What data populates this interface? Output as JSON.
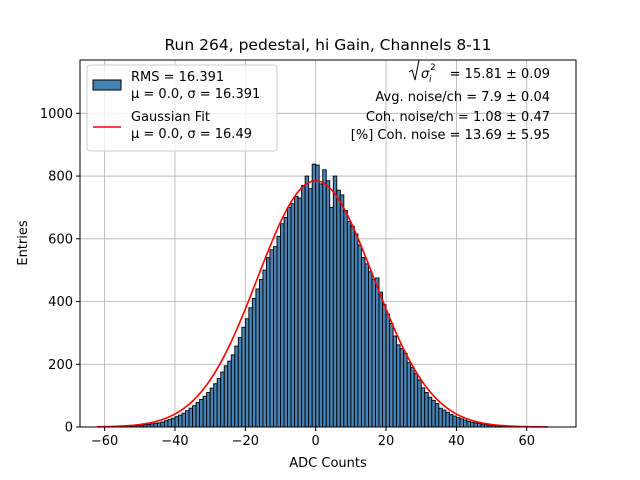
{
  "chart_data": {
    "type": "bar",
    "title": "Run 264, pedestal, hi Gain, Channels 8-11",
    "xlabel": "ADC Counts",
    "ylabel": "Entries",
    "xlim": [
      -67,
      74
    ],
    "ylim": [
      0,
      1170
    ],
    "xticks": [
      -60,
      -40,
      -20,
      0,
      20,
      40,
      60
    ],
    "yticks": [
      0,
      200,
      400,
      600,
      800,
      1000
    ],
    "grid": true,
    "legend_position": "top-left",
    "series": [
      {
        "name": "RMS = 16.391\nμ = 0.0, σ = 16.391",
        "kind": "histogram",
        "color": "#4682b4",
        "bin_width": 1,
        "bin_start": -62,
        "values": [
          1,
          1,
          1,
          1,
          1,
          2,
          2,
          2,
          3,
          3,
          4,
          5,
          6,
          7,
          8,
          10,
          12,
          13,
          16,
          20,
          24,
          28,
          33,
          38,
          44,
          52,
          60,
          68,
          78,
          88,
          98,
          110,
          124,
          138,
          155,
          175,
          195,
          210,
          230,
          258,
          285,
          318,
          345,
          380,
          410,
          440,
          470,
          500,
          540,
          565,
          575,
          608,
          648,
          668,
          700,
          712,
          735,
          730,
          770,
          800,
          760,
          838,
          835,
          775,
          820,
          785,
          700,
          800,
          755,
          740,
          690,
          655,
          640,
          615,
          580,
          540,
          520,
          495,
          470,
          475,
          430,
          390,
          360,
          330,
          290,
          262,
          250,
          235,
          205,
          190,
          170,
          150,
          125,
          110,
          95,
          85,
          75,
          60,
          54,
          47,
          40,
          35,
          30,
          26,
          22,
          18,
          15,
          13,
          11,
          9,
          7,
          6,
          5,
          4,
          3,
          3,
          2,
          2,
          1,
          1,
          1,
          1,
          1
        ]
      },
      {
        "name": "Gaussian Fit\nμ = 0.0, σ = 16.49",
        "kind": "line",
        "color": "#ff0000",
        "mu": 0.0,
        "sigma": 16.49,
        "amplitude": 785,
        "range": [
          -62,
          66
        ]
      }
    ],
    "annotations": [
      "√⟨σᵢ²⟩ = 15.81 ± 0.09",
      "Avg. noise/ch = 7.9 ± 0.04",
      "Coh. noise/ch = 1.08 ± 0.47",
      "[%] Coh. noise = 13.69 ± 5.95"
    ]
  },
  "legend": {
    "hist_line1": "RMS = 16.391",
    "hist_line2": "μ = 0.0, σ = 16.391",
    "fit_line1": "Gaussian Fit",
    "fit_line2": "μ = 0.0, σ = 16.49"
  },
  "stats": {
    "line1_value": "= 15.81 ± 0.09",
    "line2": "Avg. noise/ch = 7.9 ± 0.04",
    "line3": "Coh. noise/ch = 1.08 ± 0.47",
    "line4": "[%] Coh. noise = 13.69 ± 5.95"
  }
}
